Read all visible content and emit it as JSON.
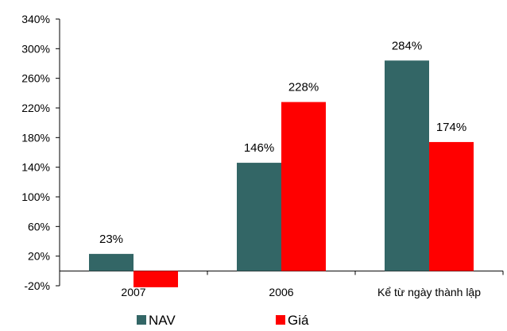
{
  "chart_data": {
    "type": "bar",
    "title": "",
    "xlabel": "",
    "ylabel": "",
    "categories": [
      "2007",
      "2006",
      "Kể từ ngày thành lập"
    ],
    "series": [
      {
        "name": "NAV",
        "values": [
          23,
          146,
          284
        ],
        "color": "#336666",
        "data_labels": [
          "23%",
          "146%",
          "284%"
        ]
      },
      {
        "name": "Giá",
        "values": [
          -22,
          228,
          174
        ],
        "color": "#ff0000",
        "data_labels": [
          "",
          "228%",
          "174%"
        ]
      }
    ],
    "ylim": [
      -20,
      340
    ],
    "yticks": [
      -20,
      20,
      60,
      100,
      140,
      180,
      220,
      260,
      300,
      340
    ],
    "ytick_labels": [
      "-20%",
      "20%",
      "60%",
      "100%",
      "140%",
      "180%",
      "220%",
      "260%",
      "300%",
      "340%"
    ],
    "grid": false,
    "legend_position": "bottom"
  }
}
